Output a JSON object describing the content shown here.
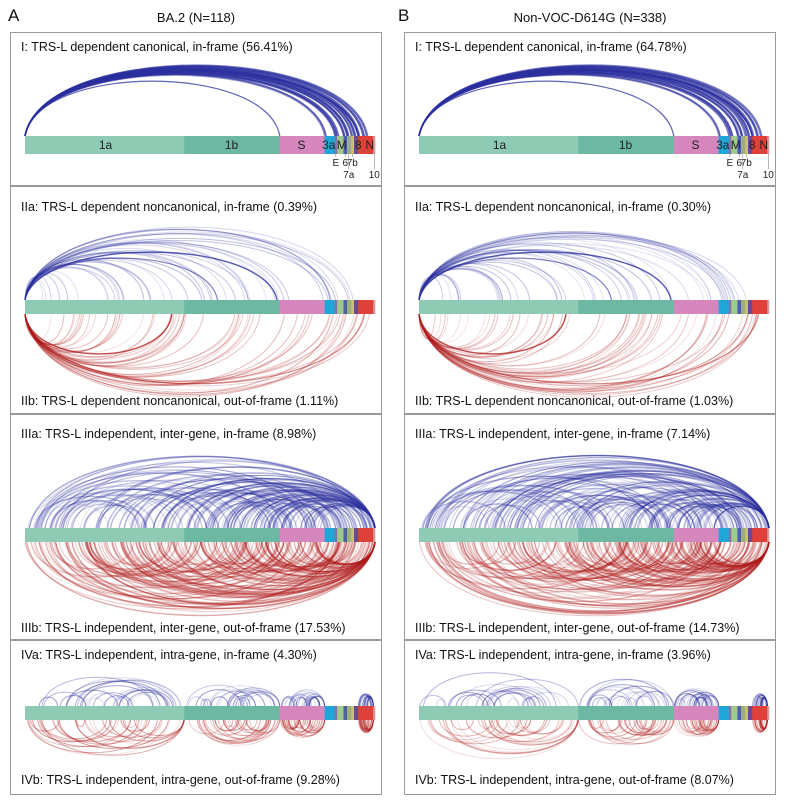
{
  "panels": {
    "A": {
      "letter": "A",
      "title": "BA.2 (N=118)",
      "labels": {
        "I": "I: TRS-L dependent canonical, in-frame (56.41%)",
        "IIa": "IIa: TRS-L dependent noncanonical, in-frame (0.39%)",
        "IIb": "IIb: TRS-L dependent noncanonical, out-of-frame (1.11%)",
        "IIIa": "IIIa: TRS-L independent, inter-gene, in-frame (8.98%)",
        "IIIb": "IIIb: TRS-L independent, inter-gene, out-of-frame (17.53%)",
        "IVa": "IVa: TRS-L independent, intra-gene, in-frame (4.30%)",
        "IVb": "IVb: TRS-L independent, intra-gene, out-of-frame (9.28%)"
      }
    },
    "B": {
      "letter": "B",
      "title": "Non-VOC-D614G (N=338)",
      "labels": {
        "I": "I: TRS-L dependent canonical, in-frame (64.78%)",
        "IIa": "IIa: TRS-L dependent noncanonical, in-frame (0.30%)",
        "IIb": "IIb: TRS-L dependent noncanonical, out-of-frame (1.03%)",
        "IIIa": "IIIa: TRS-L independent, inter-gene, in-frame (7.14%)",
        "IIIb": "IIIb: TRS-L independent, inter-gene, out-of-frame (14.73%)",
        "IVa": "IVa: TRS-L independent, intra-gene, in-frame (3.96%)",
        "IVb": "IVb: TRS-L independent, intra-gene, out-of-frame (8.07%)"
      }
    }
  },
  "genome_labels": {
    "g1a": "1a",
    "g1b": "1b",
    "gS": "S",
    "g3a": "3a",
    "gM": "M",
    "g8": "8",
    "gN": "N",
    "gE": "E",
    "g6": "6",
    "g7b": "7b",
    "g7a": "7a",
    "g10": "10"
  },
  "colors": {
    "inframe": "#2b2f9e",
    "outframe": "#b01e1e",
    "gene_1a": "#8fcbb4",
    "gene_1b": "#6cb8a2",
    "gene_S": "#d586bd",
    "gene_3a": "#1fa6d6",
    "gene_N": "#e0403a"
  }
}
